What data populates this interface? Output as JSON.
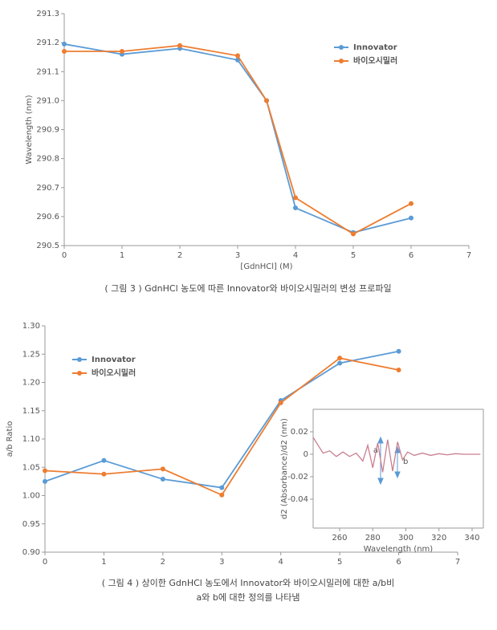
{
  "chart_data": [
    {
      "type": "line",
      "x_label": "[GdnHCl] (M)",
      "y_label": "Wavelength (nm)",
      "x": [
        0,
        1,
        2,
        3,
        3.5,
        4,
        5,
        6
      ],
      "series": [
        {
          "name": "Innovator",
          "color": "#5b9bd5",
          "values": [
            291.195,
            291.16,
            291.18,
            291.14,
            291.0,
            290.63,
            290.545,
            290.595
          ]
        },
        {
          "name": "바이오시밀러",
          "color": "#ed7d31",
          "values": [
            291.17,
            291.17,
            291.19,
            291.155,
            291.0,
            290.665,
            290.54,
            290.645
          ]
        }
      ],
      "xlim": [
        0,
        7
      ],
      "xticks": [
        0,
        1,
        2,
        3,
        4,
        5,
        6,
        7
      ],
      "ylim": [
        290.5,
        291.3
      ],
      "yticks": [
        290.5,
        290.6,
        290.7,
        290.8,
        290.9,
        {
          "value": 291,
          "label": "291.0"
        },
        291.1,
        291.2,
        291.3
      ],
      "legend": "upper right",
      "markers": true
    },
    {
      "type": "line",
      "y_label": "a/b Ratio",
      "x": [
        0,
        1,
        2,
        3,
        4,
        5,
        6
      ],
      "series": [
        {
          "name": "Innovator",
          "color": "#5b9bd5",
          "values": [
            1.025,
            1.062,
            1.029,
            1.014,
            1.168,
            1.234,
            1.255
          ]
        },
        {
          "name": "바이오시밀러",
          "color": "#ed7d31",
          "values": [
            1.044,
            1.038,
            1.047,
            1.001,
            1.164,
            1.243,
            1.222
          ]
        }
      ],
      "xlim": [
        0,
        7
      ],
      "xticks": [
        0,
        1,
        2,
        3,
        4,
        5,
        6,
        7
      ],
      "ylim": [
        0.9,
        1.3
      ],
      "yticks": [
        {
          "value": 0.9,
          "label": "0.90"
        },
        0.95,
        {
          "value": 1,
          "label": "1.00"
        },
        1.05,
        {
          "value": 1.1,
          "label": "1.10"
        },
        1.15,
        {
          "value": 1.2,
          "label": "1.20"
        },
        1.25,
        {
          "value": 1.3,
          "label": "1.30"
        }
      ],
      "legend": "upper left",
      "markers": true
    },
    {
      "type": "line",
      "x_label": "Wavelength (nm)",
      "y_label": "d2 (Absorbance)/d2 (nm)",
      "x": [
        244,
        247,
        250,
        254,
        258,
        262,
        266,
        270,
        274,
        277,
        280,
        283,
        286,
        289,
        292,
        295,
        298,
        301,
        305,
        310,
        315,
        320,
        325,
        330,
        335,
        340,
        345
      ],
      "series": [
        {
          "name": "d2",
          "color": "#c97f8e",
          "values": [
            0.015,
            0.008,
            0.001,
            0.003,
            -0.002,
            0.002,
            -0.002,
            0.001,
            -0.006,
            0.008,
            -0.012,
            0.01,
            -0.016,
            0.013,
            -0.015,
            0.011,
            -0.005,
            0.002,
            -0.001,
            0.001,
            -0.001,
            0.0005,
            -0.0005,
            0.0005,
            0,
            0,
            0
          ]
        }
      ],
      "xlim": [
        244,
        346.8
      ],
      "xticks": [
        260,
        280,
        300,
        320,
        340
      ],
      "ylim": [
        -0.0657,
        0.04
      ],
      "yticks": [
        0.02,
        0,
        -0.02,
        -0.04
      ],
      "annotations": [
        "a",
        "b"
      ],
      "markers": false
    }
  ],
  "captions": [
    "( 그림 3 ) GdnHCl 농도에 따른 Innovator와 바이오시밀러의 변성 프로파일",
    "( 그림 4 ) 상이한 GdnHCl 농도에서 Innovator와 바이오시밀러에 대한 a/b비",
    "a와 b에 대한 정의를 나타냄"
  ]
}
